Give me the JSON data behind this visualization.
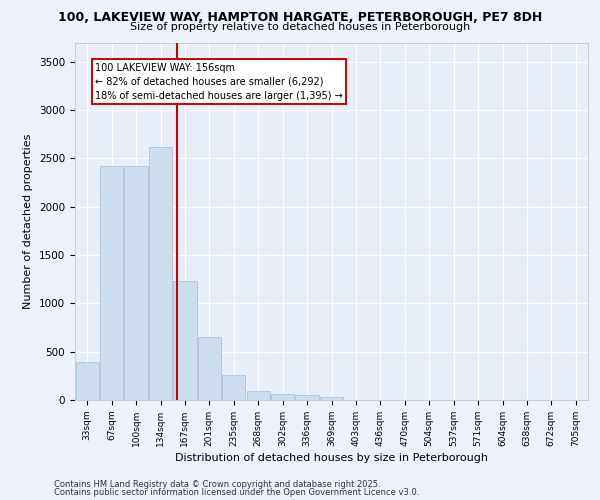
{
  "title_line1": "100, LAKEVIEW WAY, HAMPTON HARGATE, PETERBOROUGH, PE7 8DH",
  "title_line2": "Size of property relative to detached houses in Peterborough",
  "xlabel": "Distribution of detached houses by size in Peterborough",
  "ylabel": "Number of detached properties",
  "categories": [
    "33sqm",
    "67sqm",
    "100sqm",
    "134sqm",
    "167sqm",
    "201sqm",
    "235sqm",
    "268sqm",
    "302sqm",
    "336sqm",
    "369sqm",
    "403sqm",
    "436sqm",
    "470sqm",
    "504sqm",
    "537sqm",
    "571sqm",
    "604sqm",
    "638sqm",
    "672sqm",
    "705sqm"
  ],
  "values": [
    390,
    2420,
    2420,
    2620,
    1230,
    650,
    260,
    90,
    60,
    50,
    35,
    0,
    0,
    0,
    0,
    0,
    0,
    0,
    0,
    0,
    0
  ],
  "bar_color": "#ccdded",
  "bar_edge_color": "#aac4dc",
  "vline_color": "#cc0000",
  "vline_pos": 3.667,
  "annotation_text": "100 LAKEVIEW WAY: 156sqm\n← 82% of detached houses are smaller (6,292)\n18% of semi-detached houses are larger (1,395) →",
  "ylim": [
    0,
    3700
  ],
  "yticks": [
    0,
    500,
    1000,
    1500,
    2000,
    2500,
    3000,
    3500
  ],
  "background_color": "#e8eef8",
  "grid_color": "#ffffff",
  "footer_line1": "Contains HM Land Registry data © Crown copyright and database right 2025.",
  "footer_line2": "Contains public sector information licensed under the Open Government Licence v3.0."
}
